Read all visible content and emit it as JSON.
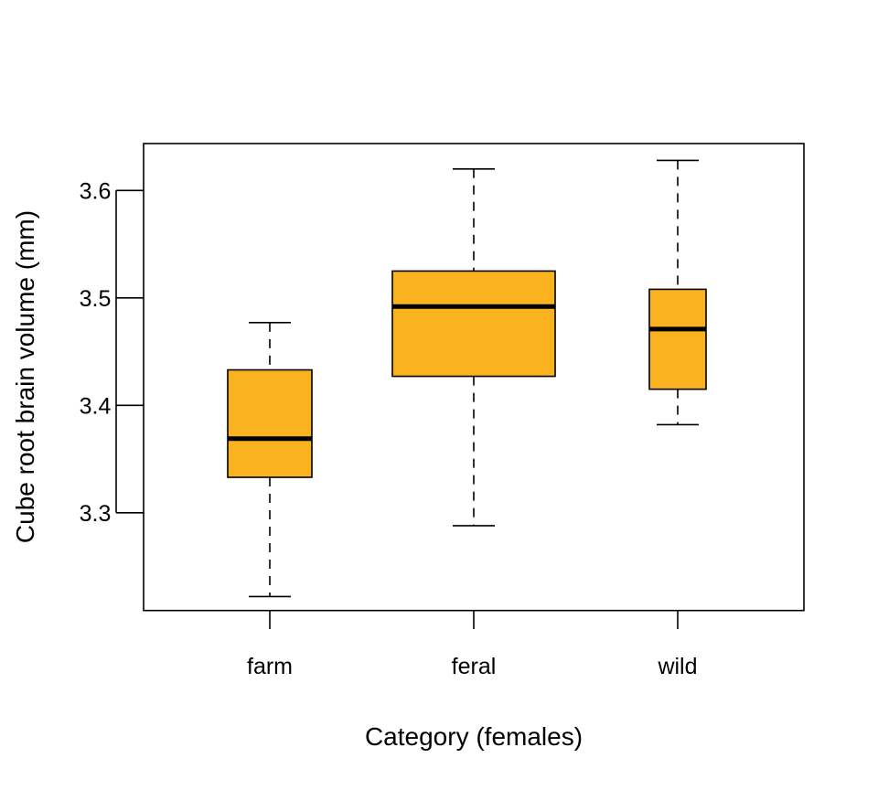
{
  "chart_data": {
    "type": "boxplot",
    "title": "",
    "xlabel": "Category (females)",
    "ylabel": "Cube root brain volume (mm)",
    "categories": [
      "farm",
      "feral",
      "wild"
    ],
    "yticks": [
      3.3,
      3.4,
      3.5,
      3.6
    ],
    "ytick_labels": [
      "3.3",
      "3.4",
      "3.5",
      "3.6"
    ],
    "ylim": [
      3.207,
      3.642
    ],
    "grid": false,
    "legend": null,
    "fill_color": "#FAB31E",
    "series": [
      {
        "name": "farm",
        "whisker_low": 3.222,
        "q1": 3.333,
        "median": 3.369,
        "q3": 3.433,
        "whisker_high": 3.477
      },
      {
        "name": "feral",
        "whisker_low": 3.288,
        "q1": 3.427,
        "median": 3.492,
        "q3": 3.525,
        "whisker_high": 3.62
      },
      {
        "name": "wild",
        "whisker_low": 3.382,
        "q1": 3.415,
        "median": 3.471,
        "q3": 3.508,
        "whisker_high": 3.628
      }
    ]
  }
}
